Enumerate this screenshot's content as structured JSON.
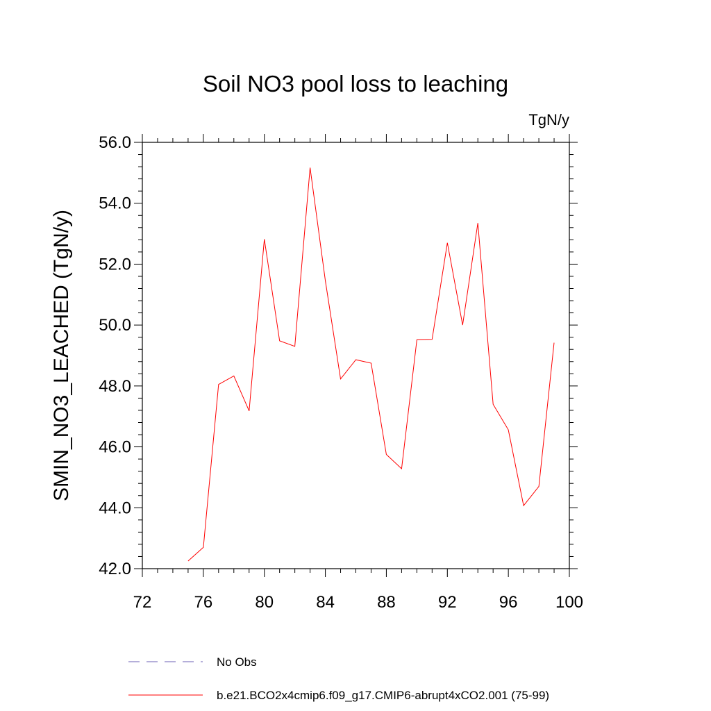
{
  "chart_data": {
    "type": "line",
    "title": "Soil NO3 pool loss to leaching",
    "units": "TgN/y",
    "xlabel": "",
    "ylabel": "SMIN_NO3_LEACHED  (TgN/y)",
    "xlim": [
      72,
      100
    ],
    "ylim": [
      42.0,
      56.0
    ],
    "xticks": [
      72,
      76,
      80,
      84,
      88,
      92,
      96,
      100
    ],
    "yticks": [
      "42.0",
      "44.0",
      "46.0",
      "48.0",
      "50.0",
      "52.0",
      "54.0",
      "56.0"
    ],
    "grid": false,
    "legend_position": "bottom",
    "series": [
      {
        "name": "b.e21.BCO2x4cmip6.f09_g17.CMIP6-abrupt4xCO2.001 (75-99)",
        "color": "#ff0000",
        "style": "solid",
        "x": [
          75,
          76,
          77,
          78,
          79,
          80,
          81,
          82,
          83,
          84,
          85,
          86,
          87,
          88,
          89,
          90,
          91,
          92,
          93,
          94,
          95,
          96,
          97,
          98,
          99
        ],
        "values": [
          42.25,
          42.7,
          48.05,
          48.33,
          47.18,
          52.82,
          49.48,
          49.3,
          55.17,
          51.45,
          48.23,
          48.86,
          48.75,
          45.75,
          45.28,
          49.52,
          49.53,
          52.7,
          50.0,
          53.35,
          47.4,
          46.56,
          44.07,
          44.7,
          49.42
        ]
      }
    ],
    "legend": [
      {
        "label": "No Obs",
        "color": "#6b5fb5",
        "style": "dashed"
      },
      {
        "label": "b.e21.BCO2x4cmip6.f09_g17.CMIP6-abrupt4xCO2.001 (75-99)",
        "color": "#ff0000",
        "style": "solid"
      }
    ]
  }
}
